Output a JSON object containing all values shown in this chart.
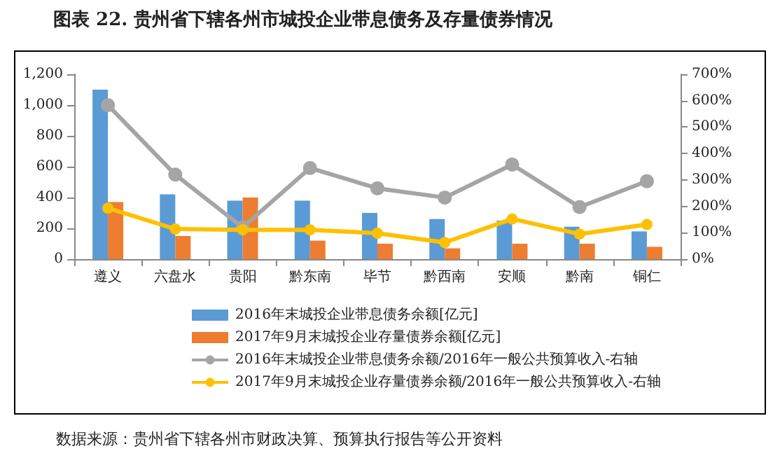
{
  "chart_data": {
    "type": "bar",
    "title": "图表  22.   贵州省下辖各州市城投企业带息债务及存量债券情况",
    "categories": [
      "遵义",
      "六盘水",
      "贵阳",
      "黔东南",
      "毕节",
      "黔西南",
      "安顺",
      "黔南",
      "铜仁"
    ],
    "series": [
      {
        "name": "2016年末城投企业带息债务余额[亿元]",
        "color": "#5b9bd5",
        "values": [
          1100,
          420,
          380,
          380,
          300,
          260,
          250,
          210,
          180
        ]
      },
      {
        "name": "2017年9月末城投企业存量债券余额[亿元]",
        "color": "#ed7d31",
        "values": [
          370,
          150,
          400,
          120,
          100,
          70,
          100,
          100,
          80
        ]
      },
      {
        "name": "2016年末城投企业带息债务余额/2016年一般公共预算收入-右轴",
        "type": "line",
        "axis": "y2",
        "color": "#a5a5a5",
        "values": [
          583,
          320,
          120,
          345,
          268,
          233,
          358,
          197,
          295
        ]
      },
      {
        "name": "2017年9月末城投企业存量债券余额/2016年一般公共预算收入-右轴",
        "type": "line",
        "axis": "y2",
        "color": "#ffc000",
        "values": [
          193,
          114,
          111,
          111,
          98,
          63,
          152,
          95,
          131
        ]
      }
    ],
    "ylim": [
      0,
      1200
    ],
    "yticks": [
      0,
      200,
      400,
      600,
      800,
      {
        "value": 1000,
        "label": "1,000"
      },
      {
        "value": 1200,
        "label": "1,200"
      }
    ],
    "y2lim": [
      0,
      700
    ],
    "y2ticks": [
      {
        "value": 0,
        "label": "0%"
      },
      {
        "value": 100,
        "label": "100%"
      },
      {
        "value": 200,
        "label": "200%"
      },
      {
        "value": 300,
        "label": "300%"
      },
      {
        "value": 400,
        "label": "400%"
      },
      {
        "value": 500,
        "label": "500%"
      },
      {
        "value": 600,
        "label": "600%"
      },
      {
        "value": 700,
        "label": "700%"
      }
    ],
    "grid": false,
    "legend": "bottom",
    "marker": "circle",
    "line_style": "solid",
    "annotations": [
      "数据来源：贵州省下辖各州市财政决算、预算执行报告等公开资料"
    ]
  }
}
